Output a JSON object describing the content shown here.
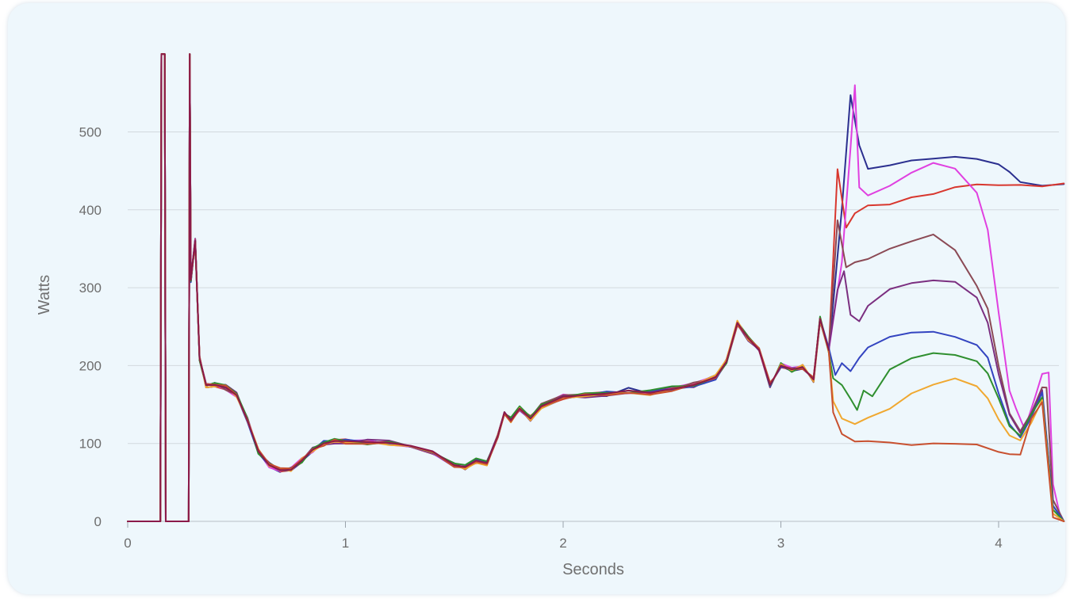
{
  "chart_data": {
    "type": "line",
    "title": "",
    "xlabel": "Seconds",
    "ylabel": "Watts",
    "xlim": [
      0,
      4.3
    ],
    "ylim": [
      0,
      600
    ],
    "x_ticks": [
      0,
      1,
      2,
      3,
      4
    ],
    "y_ticks": [
      0,
      100,
      200,
      300,
      400,
      500
    ],
    "grid": "horizontal",
    "legend": "none",
    "common_path": [
      [
        0,
        0
      ],
      [
        0.15,
        0
      ],
      [
        0.155,
        600
      ],
      [
        0.17,
        600
      ],
      [
        0.175,
        0
      ],
      [
        0.28,
        0
      ],
      [
        0.285,
        600
      ],
      [
        0.29,
        310
      ],
      [
        0.31,
        360
      ],
      [
        0.33,
        210
      ],
      [
        0.36,
        175
      ],
      [
        0.4,
        175
      ],
      [
        0.45,
        172
      ],
      [
        0.5,
        162
      ],
      [
        0.55,
        130
      ],
      [
        0.6,
        90
      ],
      [
        0.65,
        72
      ],
      [
        0.7,
        66
      ],
      [
        0.75,
        66
      ],
      [
        0.8,
        78
      ],
      [
        0.85,
        92
      ],
      [
        0.9,
        100
      ],
      [
        0.95,
        103
      ],
      [
        1.0,
        103
      ],
      [
        1.1,
        102
      ],
      [
        1.2,
        101
      ],
      [
        1.3,
        97
      ],
      [
        1.4,
        90
      ],
      [
        1.5,
        72
      ],
      [
        1.55,
        70
      ],
      [
        1.6,
        78
      ],
      [
        1.65,
        75
      ],
      [
        1.7,
        110
      ],
      [
        1.73,
        140
      ],
      [
        1.76,
        130
      ],
      [
        1.8,
        145
      ],
      [
        1.85,
        132
      ],
      [
        1.9,
        148
      ],
      [
        2.0,
        160
      ],
      [
        2.1,
        162
      ],
      [
        2.2,
        164
      ],
      [
        2.3,
        168
      ],
      [
        2.4,
        165
      ],
      [
        2.5,
        170
      ],
      [
        2.6,
        175
      ],
      [
        2.7,
        185
      ],
      [
        2.75,
        205
      ],
      [
        2.8,
        255
      ],
      [
        2.85,
        235
      ],
      [
        2.9,
        220
      ],
      [
        2.95,
        175
      ],
      [
        2.97,
        185
      ],
      [
        3.0,
        200
      ],
      [
        3.05,
        195
      ],
      [
        3.1,
        198
      ],
      [
        3.15,
        182
      ],
      [
        3.18,
        260
      ],
      [
        3.22,
        220
      ]
    ],
    "series": [
      {
        "color": "#2b2f8f",
        "points": [
          [
            3.22,
            220
          ],
          [
            3.28,
            400
          ],
          [
            3.32,
            545
          ],
          [
            3.36,
            480
          ],
          [
            3.4,
            450
          ],
          [
            3.5,
            455
          ],
          [
            3.6,
            462
          ],
          [
            3.7,
            465
          ],
          [
            3.8,
            468
          ],
          [
            3.9,
            462
          ],
          [
            4.0,
            460
          ],
          [
            4.05,
            450
          ],
          [
            4.1,
            438
          ],
          [
            4.2,
            432
          ],
          [
            4.3,
            432
          ]
        ]
      },
      {
        "color": "#d8372e",
        "points": [
          [
            3.22,
            220
          ],
          [
            3.26,
            450
          ],
          [
            3.3,
            380
          ],
          [
            3.34,
            395
          ],
          [
            3.4,
            405
          ],
          [
            3.5,
            410
          ],
          [
            3.6,
            416
          ],
          [
            3.7,
            422
          ],
          [
            3.8,
            428
          ],
          [
            3.9,
            432
          ],
          [
            4.0,
            434
          ],
          [
            4.1,
            433
          ],
          [
            4.2,
            432
          ],
          [
            4.3,
            432
          ]
        ]
      },
      {
        "color": "#e040e0",
        "points": [
          [
            3.22,
            220
          ],
          [
            3.28,
            330
          ],
          [
            3.32,
            480
          ],
          [
            3.34,
            562
          ],
          [
            3.36,
            430
          ],
          [
            3.4,
            420
          ],
          [
            3.5,
            432
          ],
          [
            3.6,
            445
          ],
          [
            3.7,
            458
          ],
          [
            3.8,
            455
          ],
          [
            3.9,
            425
          ],
          [
            3.95,
            375
          ],
          [
            4.0,
            270
          ],
          [
            4.05,
            170
          ],
          [
            4.08,
            145
          ],
          [
            4.12,
            115
          ],
          [
            4.17,
            160
          ],
          [
            4.2,
            190
          ],
          [
            4.23,
            190
          ],
          [
            4.25,
            50
          ],
          [
            4.28,
            10
          ],
          [
            4.3,
            0
          ]
        ]
      },
      {
        "color": "#8b4a55",
        "points": [
          [
            3.22,
            220
          ],
          [
            3.26,
            390
          ],
          [
            3.3,
            325
          ],
          [
            3.34,
            330
          ],
          [
            3.4,
            340
          ],
          [
            3.5,
            350
          ],
          [
            3.6,
            362
          ],
          [
            3.7,
            368
          ],
          [
            3.8,
            345
          ],
          [
            3.9,
            300
          ],
          [
            3.95,
            270
          ],
          [
            4.0,
            200
          ],
          [
            4.05,
            140
          ],
          [
            4.1,
            115
          ],
          [
            4.15,
            140
          ],
          [
            4.2,
            175
          ],
          [
            4.22,
            175
          ],
          [
            4.25,
            30
          ],
          [
            4.3,
            0
          ]
        ]
      },
      {
        "color": "#7b2f80",
        "points": [
          [
            3.22,
            220
          ],
          [
            3.26,
            300
          ],
          [
            3.29,
            318
          ],
          [
            3.32,
            265
          ],
          [
            3.36,
            255
          ],
          [
            3.4,
            275
          ],
          [
            3.5,
            295
          ],
          [
            3.6,
            308
          ],
          [
            3.7,
            312
          ],
          [
            3.8,
            308
          ],
          [
            3.9,
            285
          ],
          [
            3.95,
            255
          ],
          [
            4.0,
            190
          ],
          [
            4.05,
            140
          ],
          [
            4.1,
            115
          ],
          [
            4.15,
            140
          ],
          [
            4.2,
            170
          ],
          [
            4.25,
            20
          ],
          [
            4.3,
            0
          ]
        ]
      },
      {
        "color": "#3344c0",
        "points": [
          [
            3.22,
            220
          ],
          [
            3.25,
            190
          ],
          [
            3.28,
            205
          ],
          [
            3.32,
            195
          ],
          [
            3.36,
            210
          ],
          [
            3.4,
            220
          ],
          [
            3.5,
            235
          ],
          [
            3.6,
            240
          ],
          [
            3.7,
            245
          ],
          [
            3.8,
            240
          ],
          [
            3.9,
            225
          ],
          [
            3.95,
            210
          ],
          [
            4.0,
            165
          ],
          [
            4.05,
            125
          ],
          [
            4.1,
            110
          ],
          [
            4.15,
            135
          ],
          [
            4.2,
            165
          ],
          [
            4.25,
            20
          ],
          [
            4.3,
            0
          ]
        ]
      },
      {
        "color": "#2f8f2f",
        "points": [
          [
            3.22,
            220
          ],
          [
            3.24,
            185
          ],
          [
            3.28,
            175
          ],
          [
            3.32,
            155
          ],
          [
            3.35,
            145
          ],
          [
            3.38,
            170
          ],
          [
            3.42,
            160
          ],
          [
            3.5,
            195
          ],
          [
            3.6,
            210
          ],
          [
            3.7,
            215
          ],
          [
            3.8,
            213
          ],
          [
            3.9,
            205
          ],
          [
            3.95,
            190
          ],
          [
            4.0,
            155
          ],
          [
            4.05,
            125
          ],
          [
            4.1,
            110
          ],
          [
            4.15,
            135
          ],
          [
            4.2,
            160
          ],
          [
            4.25,
            15
          ],
          [
            4.3,
            0
          ]
        ]
      },
      {
        "color": "#f0a830",
        "points": [
          [
            3.22,
            220
          ],
          [
            3.24,
            155
          ],
          [
            3.28,
            130
          ],
          [
            3.34,
            125
          ],
          [
            3.4,
            130
          ],
          [
            3.5,
            145
          ],
          [
            3.6,
            165
          ],
          [
            3.7,
            178
          ],
          [
            3.8,
            183
          ],
          [
            3.9,
            175
          ],
          [
            3.95,
            158
          ],
          [
            4.0,
            130
          ],
          [
            4.05,
            110
          ],
          [
            4.1,
            105
          ],
          [
            4.15,
            130
          ],
          [
            4.2,
            155
          ],
          [
            4.25,
            10
          ],
          [
            4.3,
            0
          ]
        ]
      },
      {
        "color": "#c8502f",
        "points": [
          [
            3.22,
            220
          ],
          [
            3.24,
            140
          ],
          [
            3.28,
            115
          ],
          [
            3.34,
            105
          ],
          [
            3.4,
            102
          ],
          [
            3.5,
            100
          ],
          [
            3.6,
            100
          ],
          [
            3.7,
            98
          ],
          [
            3.8,
            98
          ],
          [
            3.9,
            96
          ],
          [
            4.0,
            90
          ],
          [
            4.05,
            85
          ],
          [
            4.1,
            85
          ],
          [
            4.15,
            130
          ],
          [
            4.2,
            150
          ],
          [
            4.25,
            5
          ],
          [
            4.3,
            0
          ]
        ]
      }
    ],
    "overlay_color": "#8b1a4a"
  }
}
